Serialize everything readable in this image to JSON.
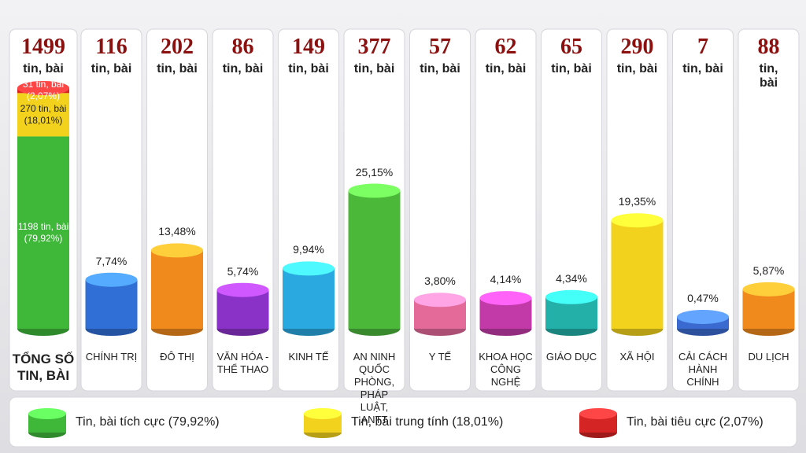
{
  "chart_data": {
    "type": "bar",
    "unit": "tin, bài",
    "total": {
      "label": "TỔNG SỐ TIN, BÀI",
      "value": 1499,
      "series": [
        {
          "name": "Tin, bài tích cực (79,92%)",
          "color": "#3fb83a",
          "value": 1198,
          "value_label": "1198 tin, bài (79,92%)"
        },
        {
          "name": "Tin, bài trung tính (18,01%)",
          "color": "#f2d21c",
          "value": 270,
          "value_label": "270 tin, bài (18,01%)"
        },
        {
          "name": "Tin, bài tiêu cực (2,07%)",
          "color": "#d42424",
          "value": 31,
          "value_label": "31 tin, bài (2,07%)"
        }
      ]
    },
    "categories": [
      "CHÍNH TRỊ",
      "ĐÔ THỊ",
      "VĂN HÓA - THỂ THAO",
      "KINH TẾ",
      "AN NINH QUỐC PHÒNG, PHÁP LUẬT, ANTT",
      "Y TẾ",
      "KHOA HỌC CÔNG NGHỆ",
      "GIÁO DỤC",
      "XÃ HỘI",
      "CẢI CÁCH HÀNH CHÍNH",
      "DU LỊCH"
    ],
    "counts": [
      116,
      202,
      86,
      149,
      377,
      57,
      62,
      65,
      290,
      7,
      88
    ],
    "values": [
      7.74,
      13.48,
      5.74,
      9.94,
      25.15,
      3.8,
      4.14,
      4.34,
      19.35,
      0.47,
      5.87
    ],
    "value_labels": [
      "7,74%",
      "13,48%",
      "5,74%",
      "9,94%",
      "25,15%",
      "3,80%",
      "4,14%",
      "4,34%",
      "19,35%",
      "0,47%",
      "5,87%"
    ],
    "colors": [
      "#2f6fd6",
      "#f08a1c",
      "#8a32c8",
      "#2aa9e0",
      "#4cb83a",
      "#e46a9a",
      "#c23aa8",
      "#22b0a8",
      "#f2d21c",
      "#3a6ad0",
      "#f08a1c"
    ]
  }
}
